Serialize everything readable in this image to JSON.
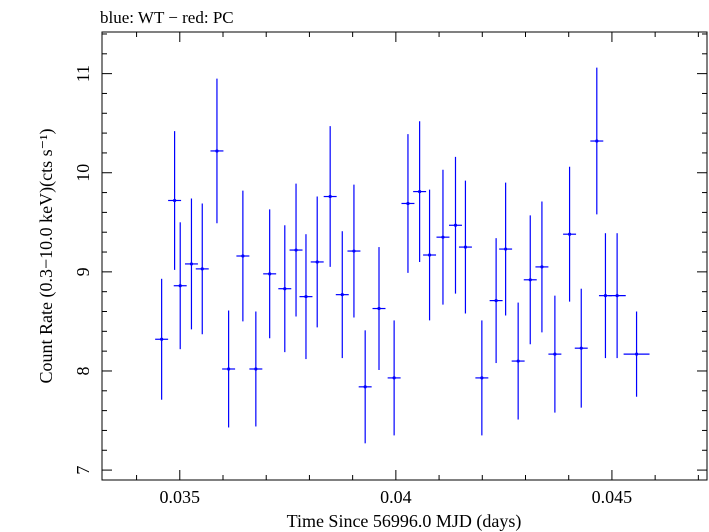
{
  "chart_data": {
    "type": "scatter",
    "title": "blue: WT − red: PC",
    "xlabel": "Time Since 56996.0 MJD (days)",
    "ylabel": "Count Rate (0.3−10.0 keV)(cts s⁻¹)",
    "xlim": [
      0.0332,
      0.0472
    ],
    "ylim": [
      6.9,
      11.42
    ],
    "x_ticks": [
      0.035,
      0.04,
      0.045
    ],
    "x_tick_labels": [
      "0.035",
      "0.04",
      "0.045"
    ],
    "y_ticks": [
      7,
      8,
      9,
      10,
      11
    ],
    "y_tick_labels": [
      "7",
      "8",
      "9",
      "10",
      "11"
    ],
    "grid": false,
    "series": [
      {
        "color": "#0000ff",
        "points": [
          {
            "x": 0.03458,
            "xerr": 0.00015,
            "y": 8.32,
            "yerr": 0.61
          },
          {
            "x": 0.03488,
            "xerr": 0.00015,
            "y": 9.72,
            "yerr": 0.7
          },
          {
            "x": 0.03501,
            "xerr": 0.00015,
            "y": 8.86,
            "yerr": 0.64
          },
          {
            "x": 0.03527,
            "xerr": 0.00015,
            "y": 9.08,
            "yerr": 0.66
          },
          {
            "x": 0.03552,
            "xerr": 0.00015,
            "y": 9.03,
            "yerr": 0.66
          },
          {
            "x": 0.03586,
            "xerr": 0.00015,
            "y": 10.22,
            "yerr": 0.73
          },
          {
            "x": 0.03613,
            "xerr": 0.00015,
            "y": 8.02,
            "yerr": 0.59
          },
          {
            "x": 0.03646,
            "xerr": 0.00015,
            "y": 9.16,
            "yerr": 0.66
          },
          {
            "x": 0.03676,
            "xerr": 0.00015,
            "y": 8.02,
            "yerr": 0.58
          },
          {
            "x": 0.03708,
            "xerr": 0.00015,
            "y": 8.98,
            "yerr": 0.65
          },
          {
            "x": 0.03743,
            "xerr": 0.00015,
            "y": 8.83,
            "yerr": 0.64
          },
          {
            "x": 0.03769,
            "xerr": 0.00015,
            "y": 9.22,
            "yerr": 0.67
          },
          {
            "x": 0.03792,
            "xerr": 0.00015,
            "y": 8.75,
            "yerr": 0.63
          },
          {
            "x": 0.03818,
            "xerr": 0.00015,
            "y": 9.1,
            "yerr": 0.66
          },
          {
            "x": 0.03848,
            "xerr": 0.00015,
            "y": 9.76,
            "yerr": 0.71
          },
          {
            "x": 0.03876,
            "xerr": 0.00015,
            "y": 8.77,
            "yerr": 0.64
          },
          {
            "x": 0.03903,
            "xerr": 0.00015,
            "y": 9.21,
            "yerr": 0.67
          },
          {
            "x": 0.03929,
            "xerr": 0.00015,
            "y": 7.84,
            "yerr": 0.57
          },
          {
            "x": 0.03961,
            "xerr": 0.00015,
            "y": 8.63,
            "yerr": 0.62
          },
          {
            "x": 0.03996,
            "xerr": 0.00015,
            "y": 7.93,
            "yerr": 0.58
          },
          {
            "x": 0.04028,
            "xerr": 0.00015,
            "y": 9.69,
            "yerr": 0.7
          },
          {
            "x": 0.04055,
            "xerr": 0.00015,
            "y": 9.81,
            "yerr": 0.71
          },
          {
            "x": 0.04078,
            "xerr": 0.00015,
            "y": 9.17,
            "yerr": 0.66
          },
          {
            "x": 0.04109,
            "xerr": 0.00015,
            "y": 9.35,
            "yerr": 0.68
          },
          {
            "x": 0.04138,
            "xerr": 0.00015,
            "y": 9.47,
            "yerr": 0.69
          },
          {
            "x": 0.04161,
            "xerr": 0.00015,
            "y": 9.25,
            "yerr": 0.67
          },
          {
            "x": 0.04199,
            "xerr": 0.00015,
            "y": 7.93,
            "yerr": 0.58
          },
          {
            "x": 0.04232,
            "xerr": 0.00015,
            "y": 8.71,
            "yerr": 0.63
          },
          {
            "x": 0.04254,
            "xerr": 0.00015,
            "y": 9.23,
            "yerr": 0.67
          },
          {
            "x": 0.04283,
            "xerr": 0.00015,
            "y": 8.1,
            "yerr": 0.59
          },
          {
            "x": 0.04311,
            "xerr": 0.00015,
            "y": 8.92,
            "yerr": 0.65
          },
          {
            "x": 0.04338,
            "xerr": 0.00015,
            "y": 9.05,
            "yerr": 0.66
          },
          {
            "x": 0.04368,
            "xerr": 0.00015,
            "y": 8.17,
            "yerr": 0.59
          },
          {
            "x": 0.04402,
            "xerr": 0.00015,
            "y": 9.38,
            "yerr": 0.68
          },
          {
            "x": 0.04429,
            "xerr": 0.00015,
            "y": 8.23,
            "yerr": 0.6
          },
          {
            "x": 0.04465,
            "xerr": 0.00015,
            "y": 10.32,
            "yerr": 0.74
          },
          {
            "x": 0.04485,
            "xerr": 0.00015,
            "y": 8.76,
            "yerr": 0.63
          },
          {
            "x": 0.04512,
            "xerr": 0.0002,
            "y": 8.76,
            "yerr": 0.63
          },
          {
            "x": 0.04557,
            "xerr": 0.0003,
            "y": 8.17,
            "yerr": 0.43
          }
        ]
      }
    ]
  }
}
